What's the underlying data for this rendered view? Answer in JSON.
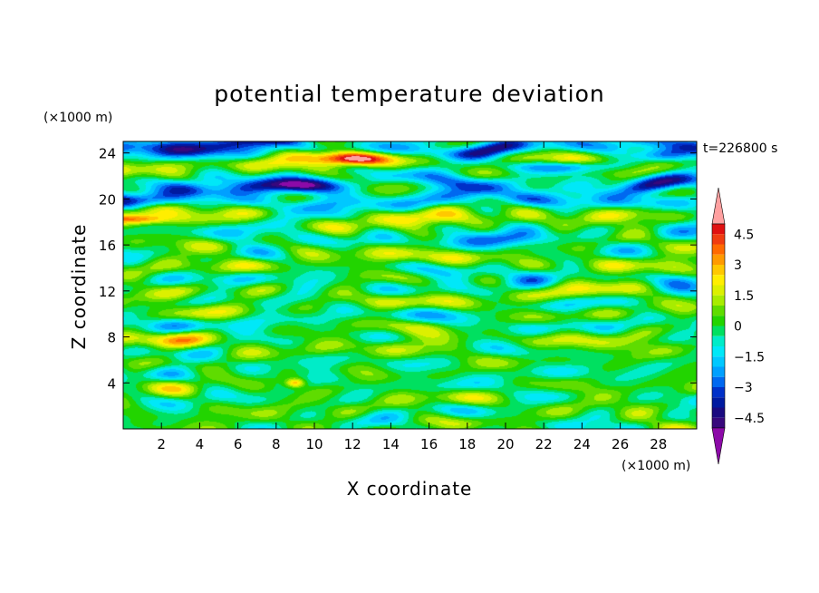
{
  "chart_data": {
    "type": "heatmap",
    "title": "potential temperature deviation",
    "xlabel": "X coordinate",
    "ylabel": "Z coordinate",
    "x_unit": "(×1000 m)",
    "y_unit": "(×1000 m)",
    "time_label": "t=226800 s",
    "xlim": [
      0,
      30
    ],
    "ylim": [
      0,
      25
    ],
    "x_ticks": [
      2,
      4,
      6,
      8,
      10,
      12,
      14,
      16,
      18,
      20,
      22,
      24,
      26,
      28
    ],
    "y_ticks": [
      4,
      8,
      12,
      16,
      20,
      24
    ],
    "colorbar": {
      "levels": [
        -5,
        -4.5,
        -4,
        -3.5,
        -3,
        -2.5,
        -2,
        -1.5,
        -1,
        -0.5,
        0,
        0.5,
        1,
        1.5,
        2,
        2.5,
        3,
        3.5,
        4,
        4.5,
        5
      ],
      "tick_values": [
        4.5,
        3,
        1.5,
        0,
        -1.5,
        -3,
        -4.5
      ],
      "tick_labels": [
        "4.5",
        "3",
        "1.5",
        "0",
        "−1.5",
        "−3",
        "−4.5"
      ],
      "colors": [
        "#ffa0a0",
        "#e01010",
        "#f03c10",
        "#ff6a00",
        "#ff9a00",
        "#ffc800",
        "#ffee00",
        "#dcf000",
        "#a8ec00",
        "#5fdc00",
        "#22d400",
        "#00e060",
        "#00ecc8",
        "#00e8f8",
        "#00c8ff",
        "#00a0ff",
        "#0068f0",
        "#0030c8",
        "#001aa0",
        "#1a0a80",
        "#38087c",
        "#8c0aa8"
      ]
    },
    "bands": [
      {
        "z": 24.5,
        "amp": -3.5,
        "w": 0.7
      },
      {
        "z": 23.2,
        "amp": 1.7,
        "w": 0.7
      },
      {
        "z": 21.3,
        "amp": -2.5,
        "w": 0.7
      },
      {
        "z": 19.8,
        "amp": -2.3,
        "w": 0.7
      },
      {
        "z": 18.5,
        "amp": 1.7,
        "w": 0.8
      },
      {
        "z": 16.8,
        "amp": -0.8,
        "w": 1.0
      },
      {
        "z": 14.7,
        "amp": 1.0,
        "w": 0.9
      },
      {
        "z": 13.0,
        "amp": -0.9,
        "w": 0.9
      },
      {
        "z": 11.3,
        "amp": 0.7,
        "w": 0.9
      },
      {
        "z": 9.3,
        "amp": -0.6,
        "w": 1.0
      },
      {
        "z": 7.5,
        "amp": 0.9,
        "w": 0.9
      },
      {
        "z": 5.2,
        "amp": -0.4,
        "w": 1.1
      },
      {
        "z": 3.0,
        "amp": 0.2,
        "w": 1.0
      }
    ],
    "blobs": [
      {
        "x": 3.5,
        "z": 24.0,
        "amp": -2.5,
        "sx": 3.0,
        "sz": 0.8
      },
      {
        "x": 12.0,
        "z": 23.5,
        "amp": 4.8,
        "sx": 2.5,
        "sz": 0.6
      },
      {
        "x": 9.0,
        "z": 21.2,
        "amp": -3.0,
        "sx": 2.5,
        "sz": 0.6
      },
      {
        "x": 1.5,
        "z": 19.8,
        "amp": -1.8,
        "sx": 2.0,
        "sz": 0.6
      },
      {
        "x": 28.5,
        "z": 19.8,
        "amp": -2.0,
        "sx": 1.8,
        "sz": 0.6
      },
      {
        "x": 23.0,
        "z": 22.8,
        "amp": -2.8,
        "sx": 3.5,
        "sz": 0.5
      },
      {
        "x": 28.5,
        "z": 23.8,
        "amp": -2.5,
        "sx": 1.5,
        "sz": 0.6
      },
      {
        "x": 9.0,
        "z": 4.0,
        "amp": 3.2,
        "sx": 0.5,
        "sz": 0.4
      },
      {
        "x": 1.0,
        "z": 18.2,
        "amp": 2.5,
        "sx": 1.5,
        "sz": 0.4
      },
      {
        "x": 20.0,
        "z": 16.5,
        "amp": -1.5,
        "sx": 3.0,
        "sz": 0.6
      }
    ]
  }
}
